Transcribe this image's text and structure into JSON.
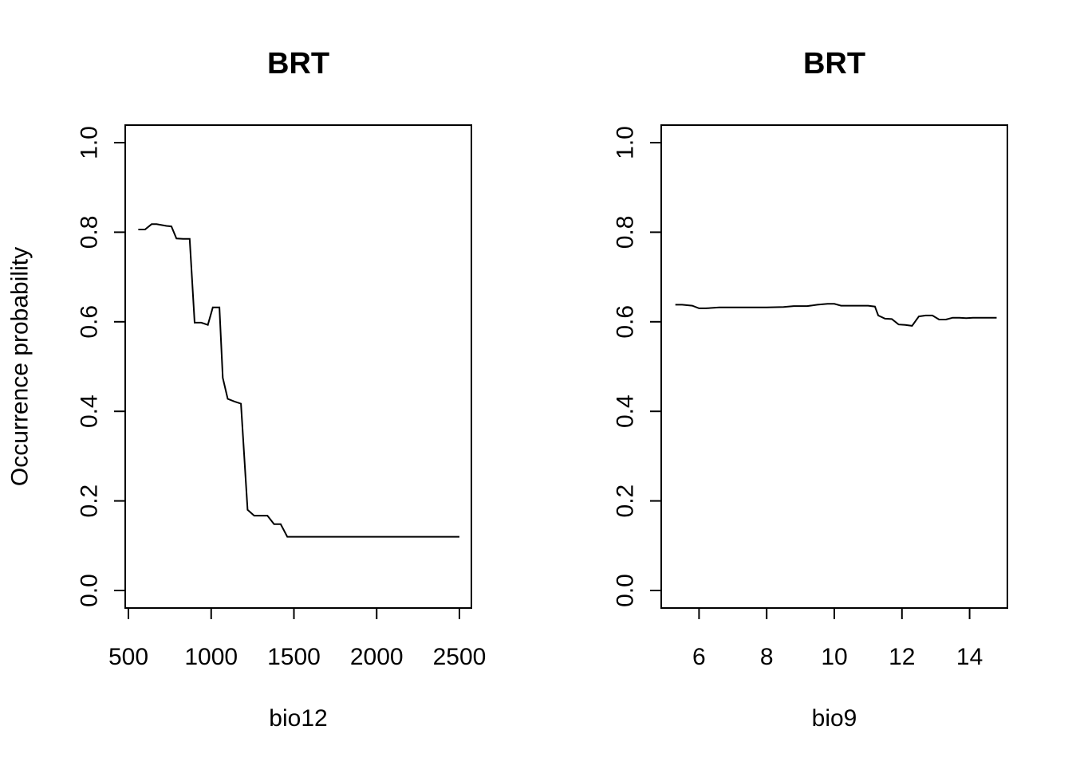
{
  "chart_data": [
    {
      "type": "line",
      "title": "BRT",
      "xlabel": "bio12",
      "ylabel": "Occurrence probability",
      "xlim": [
        500,
        2500
      ],
      "ylim": [
        0.0,
        1.0
      ],
      "xticks": [
        500,
        1000,
        1500,
        2000,
        2500
      ],
      "xtick_labels": [
        "500",
        "1000",
        "1500",
        "2000",
        "2500"
      ],
      "yticks": [
        0.0,
        0.2,
        0.4,
        0.6,
        0.8,
        1.0
      ],
      "ytick_labels": [
        "0.0",
        "0.2",
        "0.4",
        "0.6",
        "0.8",
        "1.0"
      ],
      "grid": false,
      "legend": "none",
      "series": [
        {
          "color": "#000000",
          "x": [
            560,
            600,
            640,
            670,
            700,
            730,
            760,
            790,
            830,
            870,
            900,
            940,
            980,
            1010,
            1050,
            1070,
            1100,
            1140,
            1180,
            1220,
            1260,
            1300,
            1340,
            1380,
            1420,
            1460,
            1500,
            1540,
            1600,
            1700,
            1800,
            1900,
            2000,
            2100,
            2200,
            2300,
            2400,
            2500
          ],
          "y": [
            0.806,
            0.806,
            0.818,
            0.818,
            0.816,
            0.814,
            0.813,
            0.786,
            0.785,
            0.785,
            0.598,
            0.598,
            0.593,
            0.632,
            0.632,
            0.475,
            0.428,
            0.422,
            0.417,
            0.18,
            0.167,
            0.167,
            0.167,
            0.148,
            0.148,
            0.12,
            0.12,
            0.12,
            0.12,
            0.12,
            0.12,
            0.12,
            0.12,
            0.12,
            0.12,
            0.12,
            0.12,
            0.12
          ]
        }
      ]
    },
    {
      "type": "line",
      "title": "BRT",
      "xlabel": "bio9",
      "ylabel": "",
      "xlim": [
        5.0,
        15.0
      ],
      "ylim": [
        0.0,
        1.0
      ],
      "xticks": [
        6,
        8,
        10,
        12,
        14
      ],
      "xtick_labels": [
        "6",
        "8",
        "10",
        "12",
        "14"
      ],
      "yticks": [
        0.0,
        0.2,
        0.4,
        0.6,
        0.8,
        1.0
      ],
      "ytick_labels": [
        "0.0",
        "0.2",
        "0.4",
        "0.6",
        "0.8",
        "1.0"
      ],
      "grid": false,
      "legend": "none",
      "series": [
        {
          "color": "#000000",
          "x": [
            5.3,
            5.5,
            5.8,
            6.0,
            6.2,
            6.6,
            7.0,
            7.5,
            8.0,
            8.5,
            8.8,
            9.0,
            9.2,
            9.5,
            9.8,
            10.0,
            10.2,
            10.5,
            11.0,
            11.2,
            11.3,
            11.5,
            11.7,
            11.9,
            12.1,
            12.3,
            12.5,
            12.7,
            12.9,
            13.1,
            13.3,
            13.5,
            13.7,
            13.9,
            14.1,
            14.4,
            14.8
          ],
          "y": [
            0.638,
            0.638,
            0.636,
            0.63,
            0.63,
            0.632,
            0.632,
            0.632,
            0.632,
            0.633,
            0.635,
            0.635,
            0.635,
            0.638,
            0.64,
            0.64,
            0.636,
            0.636,
            0.636,
            0.634,
            0.614,
            0.607,
            0.606,
            0.594,
            0.593,
            0.591,
            0.612,
            0.614,
            0.614,
            0.605,
            0.605,
            0.609,
            0.609,
            0.608,
            0.609,
            0.609,
            0.609
          ]
        }
      ]
    }
  ]
}
